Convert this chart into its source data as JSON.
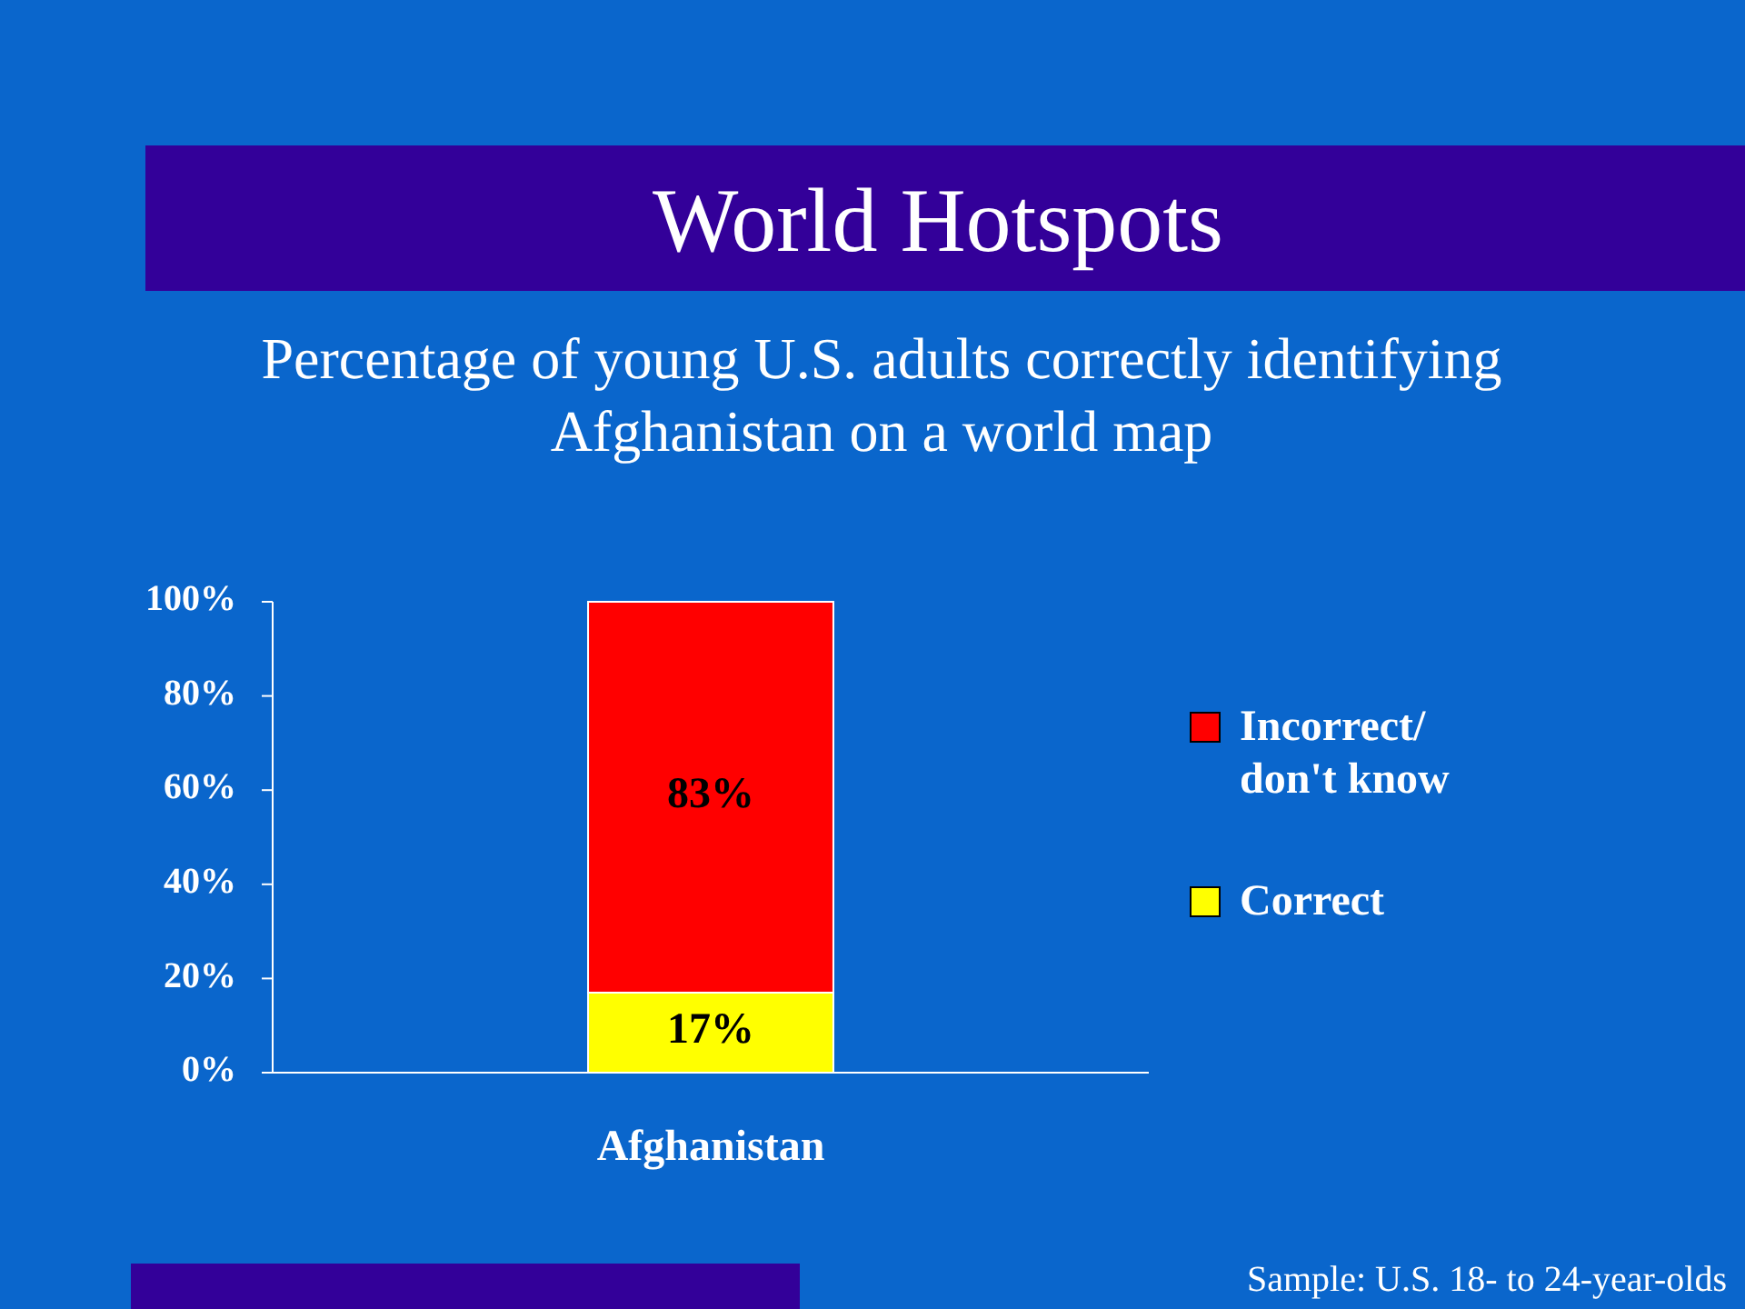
{
  "chart_data": {
    "type": "bar",
    "title": "World Hotspots",
    "subtitle": "Percentage of young U.S. adults correctly identifying Afghanistan on a world map",
    "categories": [
      "Afghanistan"
    ],
    "stacked": true,
    "series": [
      {
        "name": "Correct",
        "color": "#ffff00",
        "values": [
          17
        ],
        "value_labels": [
          "17%"
        ]
      },
      {
        "name": "Incorrect/ don't know",
        "color": "#ff0000",
        "values": [
          83
        ],
        "value_labels": [
          "83%"
        ]
      }
    ],
    "ylim": [
      0,
      100
    ],
    "yticks": [
      {
        "value": 0,
        "label": "0%"
      },
      {
        "value": 20,
        "label": "20%"
      },
      {
        "value": 40,
        "label": "40%"
      },
      {
        "value": 60,
        "label": "60%"
      },
      {
        "value": 80,
        "label": "80%"
      },
      {
        "value": 100,
        "label": "100%"
      }
    ],
    "legend": "right",
    "grid": false,
    "annotations": [
      "Sample: U.S. 18- to 24-year-olds"
    ]
  }
}
